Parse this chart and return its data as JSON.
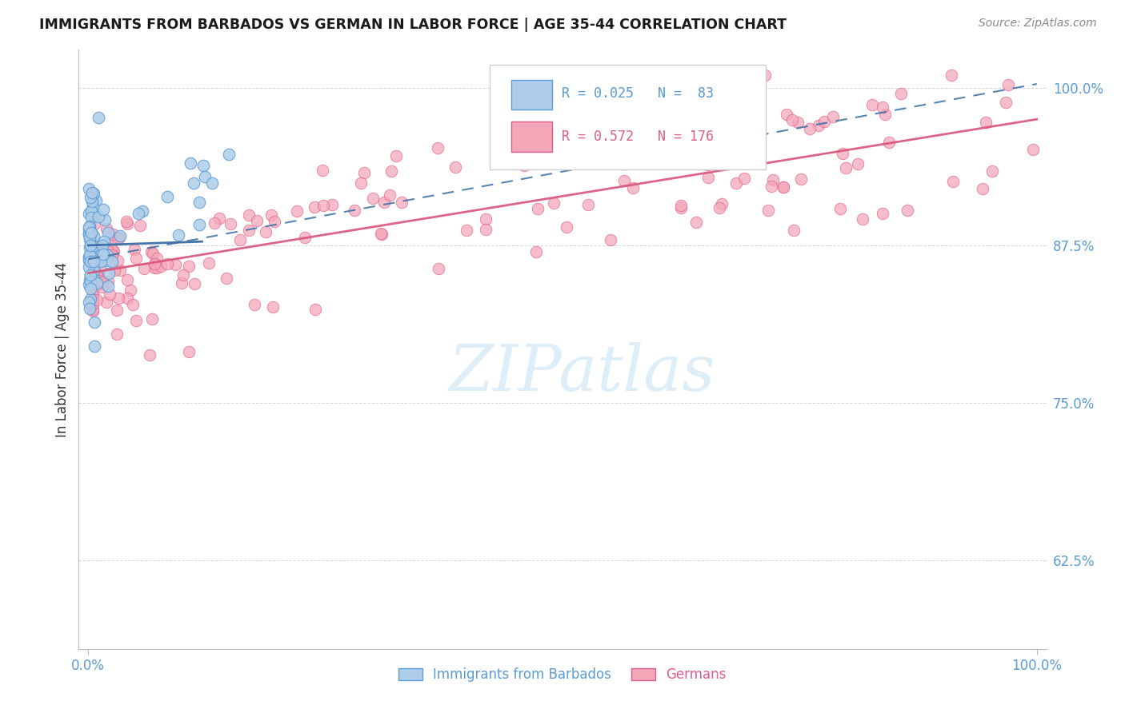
{
  "title": "IMMIGRANTS FROM BARBADOS VS GERMAN IN LABOR FORCE | AGE 35-44 CORRELATION CHART",
  "source": "Source: ZipAtlas.com",
  "ylabel": "In Labor Force | Age 35-44",
  "ytick_vals": [
    0.625,
    0.75,
    0.875,
    1.0
  ],
  "ytick_labels": [
    "62.5%",
    "75.0%",
    "87.5%",
    "100.0%"
  ],
  "xlim": [
    -0.01,
    1.01
  ],
  "ylim": [
    0.555,
    1.03
  ],
  "background_color": "#ffffff",
  "blue_scatter_color": "#aecde8",
  "blue_edge_color": "#5b9bd5",
  "pink_scatter_color": "#f4a7b9",
  "pink_edge_color": "#e05c8a",
  "blue_line_color": "#3a6ea5",
  "pink_line_color": "#d9547a",
  "grid_color": "#cccccc",
  "tick_color": "#5b9bd5",
  "title_color": "#1a1a1a",
  "source_color": "#888888",
  "ylabel_color": "#333333",
  "watermark_color": "#ddeef8",
  "legend_edge_color": "#cccccc",
  "legend_text_blue": "#5b9bd5",
  "legend_text_pink": "#e05c8a",
  "blue_seed": 42,
  "pink_seed": 99
}
